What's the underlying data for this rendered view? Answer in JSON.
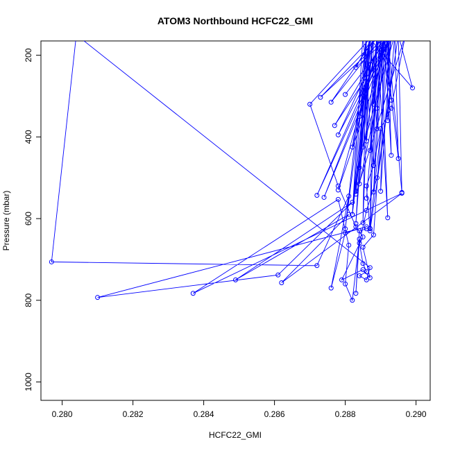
{
  "chart_data": {
    "type": "line",
    "title": "ATOM3 Northbound HCFC22_GMI",
    "xlabel": "HCFC22_GMI",
    "ylabel": "Pressure (mbar)",
    "xlim": [
      0.2794,
      0.2904
    ],
    "ylim": [
      1045,
      165
    ],
    "y_reversed": true,
    "x_ticks": [
      0.28,
      0.282,
      0.284,
      0.286,
      0.288,
      0.29
    ],
    "x_tick_labels": [
      "0.280",
      "0.282",
      "0.284",
      "0.286",
      "0.288",
      "0.290"
    ],
    "y_ticks": [
      200,
      400,
      600,
      800,
      1000
    ],
    "y_tick_labels": [
      "200",
      "400",
      "600",
      "800",
      "1000"
    ],
    "grid": false,
    "line_color": "#0000ff",
    "series": [
      {
        "points": [
          [
            0.2886,
            150
          ],
          [
            0.2899,
            280
          ],
          [
            0.2895,
            150
          ],
          [
            0.2896,
            536
          ],
          [
            0.2892,
            150
          ],
          [
            0.2877,
            372
          ],
          [
            0.2894,
            150
          ],
          [
            0.2895,
            453
          ],
          [
            0.2891,
            150
          ],
          [
            0.2876,
            315
          ],
          [
            0.2889,
            150
          ],
          [
            0.2887,
            624
          ],
          [
            0.2893,
            150
          ],
          [
            0.2883,
            230
          ],
          [
            0.2888,
            150
          ],
          [
            0.287,
            320
          ],
          [
            0.2878,
            520
          ],
          [
            0.2883,
            620
          ],
          [
            0.2885,
            645
          ],
          [
            0.2879,
            750
          ],
          [
            0.2885,
            725
          ],
          [
            0.2887,
            745
          ],
          [
            0.2885,
            670
          ],
          [
            0.2888,
            640
          ],
          [
            0.2892,
            150
          ],
          [
            0.2873,
            303
          ],
          [
            0.289,
            150
          ],
          [
            0.2878,
            530
          ],
          [
            0.2893,
            150
          ],
          [
            0.289,
            533
          ],
          [
            0.2891,
            150
          ],
          [
            0.2878,
            395
          ],
          [
            0.2893,
            150
          ],
          [
            0.288,
            296
          ],
          [
            0.2893,
            150
          ],
          [
            0.2874,
            548
          ],
          [
            0.2892,
            150
          ],
          [
            0.2872,
            543
          ],
          [
            0.2893,
            150
          ],
          [
            0.2884,
            515
          ],
          [
            0.2887,
            150
          ],
          [
            0.2882,
            425
          ],
          [
            0.289,
            150
          ],
          [
            0.2886,
            550
          ],
          [
            0.289,
            150
          ],
          [
            0.2884,
            350
          ],
          [
            0.2888,
            150
          ],
          [
            0.2885,
            425
          ],
          [
            0.2894,
            150
          ],
          [
            0.2892,
            360
          ],
          [
            0.2892,
            150
          ],
          [
            0.2893,
            445
          ],
          [
            0.2891,
            150
          ],
          [
            0.2888,
            535
          ],
          [
            0.289,
            150
          ],
          [
            0.2892,
            598
          ],
          [
            0.2889,
            150
          ],
          [
            0.2887,
            433
          ],
          [
            0.2891,
            150
          ],
          [
            0.2884,
            475
          ],
          [
            0.2888,
            150
          ],
          [
            0.2883,
            533
          ],
          [
            0.2887,
            150
          ],
          [
            0.2883,
            612
          ],
          [
            0.2886,
            150
          ],
          [
            0.2882,
            590
          ],
          [
            0.2888,
            150
          ],
          [
            0.2887,
            625
          ],
          [
            0.2889,
            150
          ],
          [
            0.2888,
            320
          ],
          [
            0.2891,
            150
          ],
          [
            0.2889,
            330
          ],
          [
            0.2892,
            150
          ],
          [
            0.2893,
            310
          ],
          [
            0.289,
            150
          ],
          [
            0.2889,
            380
          ],
          [
            0.2887,
            150
          ],
          [
            0.2886,
            410
          ],
          [
            0.2889,
            150
          ],
          [
            0.2888,
            470
          ],
          [
            0.2885,
            150
          ],
          [
            0.2882,
            590
          ],
          [
            0.2887,
            150
          ],
          [
            0.2885,
            610
          ],
          [
            0.2886,
            150
          ],
          [
            0.288,
            625
          ],
          [
            0.2887,
            150
          ],
          [
            0.2883,
            540
          ],
          [
            0.2897,
            150
          ],
          [
            0.2893,
            330
          ],
          [
            0.289,
            380
          ],
          [
            0.2888,
            470
          ],
          [
            0.2886,
            520
          ],
          [
            0.2887,
            630
          ],
          [
            0.2895,
            150
          ],
          [
            0.2889,
            500
          ],
          [
            0.2886,
            580
          ],
          [
            0.2884,
            660
          ],
          [
            0.2885,
            710
          ],
          [
            0.2886,
            730
          ],
          [
            0.2884,
            740
          ],
          [
            0.2886,
            750
          ],
          [
            0.2887,
            720
          ],
          [
            0.2804,
            150
          ],
          [
            0.2797,
            706
          ],
          [
            0.2872,
            715
          ],
          [
            0.2881,
            545
          ],
          [
            0.2876,
            770
          ],
          [
            0.288,
            635
          ],
          [
            0.2886,
            620
          ],
          [
            0.281,
            793
          ],
          [
            0.2861,
            738
          ],
          [
            0.2882,
            560
          ],
          [
            0.2849,
            750
          ],
          [
            0.2881,
            590
          ],
          [
            0.2862,
            757
          ],
          [
            0.2896,
            538
          ],
          [
            0.2837,
            783
          ],
          [
            0.2878,
            553
          ],
          [
            0.2881,
            665
          ],
          [
            0.288,
            760
          ],
          [
            0.2882,
            800
          ],
          [
            0.2884,
            650
          ],
          [
            0.2883,
            783
          ],
          [
            0.2884,
            630
          ],
          [
            0.2886,
            625
          ]
        ]
      }
    ]
  }
}
